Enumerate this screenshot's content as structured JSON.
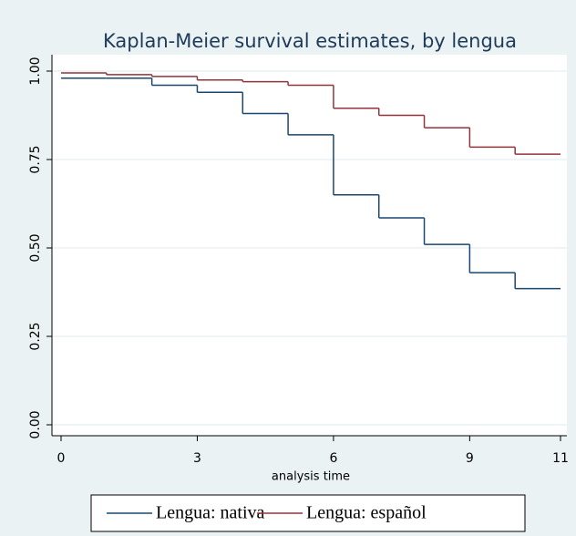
{
  "chart_data": {
    "type": "step",
    "title": "Kaplan-Meier survival estimates, by lengua",
    "x_label": "analysis time",
    "x": [
      0,
      1,
      2,
      3,
      4,
      5,
      6,
      7,
      8,
      9,
      10
    ],
    "series": [
      {
        "name": "Lengua: nativa",
        "color": "#1a476f",
        "values": [
          0.98,
          0.98,
          0.96,
          0.94,
          0.88,
          0.82,
          0.65,
          0.585,
          0.51,
          0.43,
          0.385
        ]
      },
      {
        "name": "Lengua: español",
        "color": "#90353b",
        "values": [
          0.995,
          0.99,
          0.985,
          0.975,
          0.97,
          0.96,
          0.895,
          0.875,
          0.84,
          0.785,
          0.765
        ]
      }
    ],
    "xlim": [
      0,
      11
    ],
    "xticks": [
      0,
      3,
      6,
      9,
      11
    ],
    "ylim": [
      0,
      1
    ],
    "yticks": [
      {
        "value": 0,
        "label": "0.00"
      },
      {
        "value": 0.25,
        "label": "0.25"
      },
      {
        "value": 0.5,
        "label": "0.50"
      },
      {
        "value": 0.75,
        "label": "0.75"
      },
      {
        "value": 1,
        "label": "1.00"
      }
    ],
    "grid": true
  }
}
